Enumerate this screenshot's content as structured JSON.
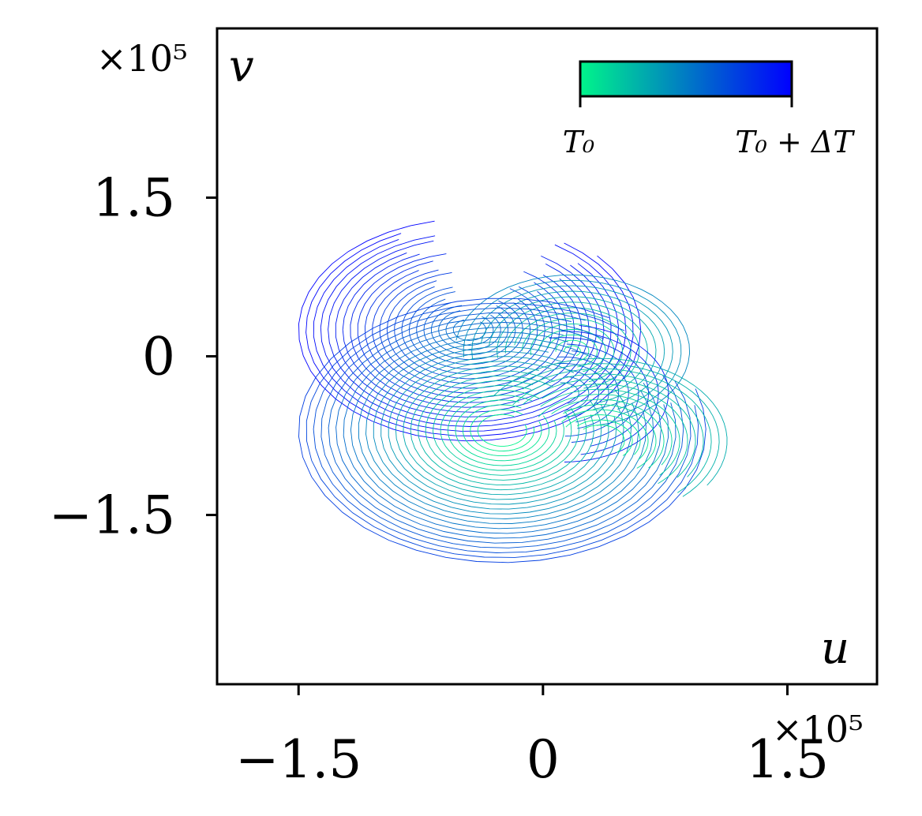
{
  "chart_data": {
    "type": "line",
    "title": "",
    "xlabel": "u",
    "ylabel": "v",
    "x_multiplier": "×10⁵",
    "y_multiplier": "×10⁵",
    "xlim": [
      -2.0,
      2.05
    ],
    "ylim": [
      -3.1,
      3.1
    ],
    "x_ticks": [
      -1.5,
      0,
      1.5
    ],
    "y_ticks": [
      -1.5,
      0,
      1.5
    ],
    "x_tick_labels": [
      "−1.5",
      "0",
      "1.5"
    ],
    "y_tick_labels": [
      "−1.5",
      "0",
      "1.5"
    ],
    "grid": false,
    "colorbar": {
      "position": "top-right",
      "label_start": "T₀",
      "label_end": "T₀ + ΔT",
      "color_start": "#00f58a",
      "color_end": "#0000ff"
    },
    "series": [
      {
        "center": [
          -0.45,
          0.25
        ],
        "radii": [
          0.1,
          1.05
        ],
        "spacing": 0.045,
        "start_deg": 110,
        "sweep_deg": 300,
        "t_start": 0.55,
        "t_end": 1.0
      },
      {
        "center": [
          0.18,
          0.05
        ],
        "radii": [
          0.05,
          0.72
        ],
        "spacing": 0.05,
        "start_deg": -70,
        "sweep_deg": 250,
        "t_start": 0.0,
        "t_end": 0.45
      },
      {
        "center": [
          0.12,
          -0.35
        ],
        "radii": [
          0.1,
          0.65
        ],
        "spacing": 0.06,
        "start_deg": -80,
        "sweep_deg": 170,
        "t_start": 0.5,
        "t_end": 0.9
      },
      {
        "center": [
          -0.25,
          -0.7
        ],
        "radii": [
          0.15,
          1.25
        ],
        "spacing": 0.045,
        "start_deg": 60,
        "sweep_deg": 320,
        "t_start": 0.0,
        "t_end": 0.75
      },
      {
        "center": [
          0.35,
          -0.8
        ],
        "radii": [
          0.15,
          0.78
        ],
        "spacing": 0.05,
        "start_deg": -40,
        "sweep_deg": 180,
        "t_start": 0.0,
        "t_end": 0.3
      }
    ]
  }
}
